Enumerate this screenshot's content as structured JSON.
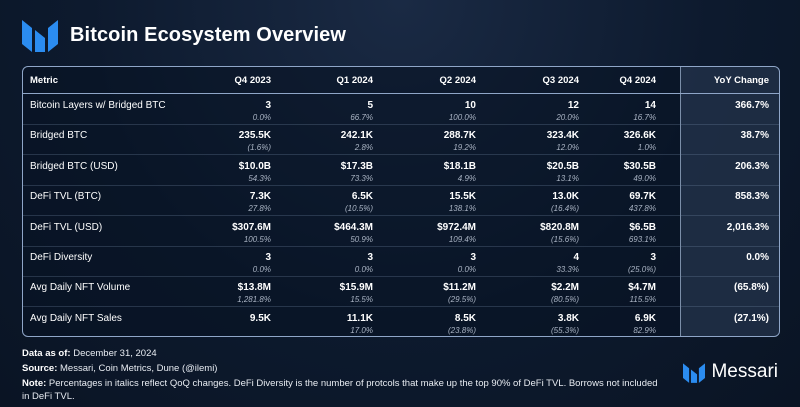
{
  "title": "Bitcoin Ecosystem Overview",
  "brand": "Messari",
  "columns": {
    "metric": "Metric",
    "q4_2023": "Q4 2023",
    "q1_2024": "Q1 2024",
    "q2_2024": "Q2 2024",
    "q3_2024": "Q3 2024",
    "q4_2024": "Q4 2024",
    "yoy": "YoY Change"
  },
  "rows": [
    {
      "metric": "Bitcoin Layers w/ Bridged BTC",
      "q4_2023": {
        "v": "3",
        "c": "0.0%"
      },
      "q1_2024": {
        "v": "5",
        "c": "66.7%"
      },
      "q2_2024": {
        "v": "10",
        "c": "100.0%"
      },
      "q3_2024": {
        "v": "12",
        "c": "20.0%"
      },
      "q4_2024": {
        "v": "14",
        "c": "16.7%"
      },
      "yoy": "366.7%"
    },
    {
      "metric": "Bridged BTC",
      "q4_2023": {
        "v": "235.5K",
        "c": "(1.6%)"
      },
      "q1_2024": {
        "v": "242.1K",
        "c": "2.8%"
      },
      "q2_2024": {
        "v": "288.7K",
        "c": "19.2%"
      },
      "q3_2024": {
        "v": "323.4K",
        "c": "12.0%"
      },
      "q4_2024": {
        "v": "326.6K",
        "c": "1.0%"
      },
      "yoy": "38.7%"
    },
    {
      "metric": "Bridged BTC (USD)",
      "q4_2023": {
        "v": "$10.0B",
        "c": "54.3%"
      },
      "q1_2024": {
        "v": "$17.3B",
        "c": "73.3%"
      },
      "q2_2024": {
        "v": "$18.1B",
        "c": "4.9%"
      },
      "q3_2024": {
        "v": "$20.5B",
        "c": "13.1%"
      },
      "q4_2024": {
        "v": "$30.5B",
        "c": "49.0%"
      },
      "yoy": "206.3%"
    },
    {
      "metric": "DeFi TVL (BTC)",
      "q4_2023": {
        "v": "7.3K",
        "c": "27.8%"
      },
      "q1_2024": {
        "v": "6.5K",
        "c": "(10.5%)"
      },
      "q2_2024": {
        "v": "15.5K",
        "c": "138.1%"
      },
      "q3_2024": {
        "v": "13.0K",
        "c": "(16.4%)"
      },
      "q4_2024": {
        "v": "69.7K",
        "c": "437.8%"
      },
      "yoy": "858.3%"
    },
    {
      "metric": "DeFi TVL (USD)",
      "q4_2023": {
        "v": "$307.6M",
        "c": "100.5%"
      },
      "q1_2024": {
        "v": "$464.3M",
        "c": "50.9%"
      },
      "q2_2024": {
        "v": "$972.4M",
        "c": "109.4%"
      },
      "q3_2024": {
        "v": "$820.8M",
        "c": "(15.6%)"
      },
      "q4_2024": {
        "v": "$6.5B",
        "c": "693.1%"
      },
      "yoy": "2,016.3%"
    },
    {
      "metric": "DeFi Diversity",
      "q4_2023": {
        "v": "3",
        "c": "0.0%"
      },
      "q1_2024": {
        "v": "3",
        "c": "0.0%"
      },
      "q2_2024": {
        "v": "3",
        "c": "0.0%"
      },
      "q3_2024": {
        "v": "4",
        "c": "33.3%"
      },
      "q4_2024": {
        "v": "3",
        "c": "(25.0%)"
      },
      "yoy": "0.0%"
    },
    {
      "metric": "Avg Daily NFT Volume",
      "q4_2023": {
        "v": "$13.8M",
        "c": "1,281.8%"
      },
      "q1_2024": {
        "v": "$15.9M",
        "c": "15.5%"
      },
      "q2_2024": {
        "v": "$11.2M",
        "c": "(29.5%)"
      },
      "q3_2024": {
        "v": "$2.2M",
        "c": "(80.5%)"
      },
      "q4_2024": {
        "v": "$4.7M",
        "c": "115.5%"
      },
      "yoy": "(65.8%)"
    },
    {
      "metric": "Avg Daily NFT Sales",
      "q4_2023": {
        "v": "9.5K",
        "c": ""
      },
      "q1_2024": {
        "v": "11.1K",
        "c": "17.0%"
      },
      "q2_2024": {
        "v": "8.5K",
        "c": "(23.8%)"
      },
      "q3_2024": {
        "v": "3.8K",
        "c": "(55.3%)"
      },
      "q4_2024": {
        "v": "6.9K",
        "c": "82.9%"
      },
      "yoy": "(27.1%)"
    }
  ],
  "footer": {
    "data_as_of_label": "Data as of:",
    "data_as_of": "December 31, 2024",
    "source_label": "Source:",
    "source": "Messari, Coin Metrics, Dune (@ilemi)",
    "note_label": "Note:",
    "note": "Percentages in italics reflect QoQ changes. DeFi Diversity is the number of protcols that make up the top 90% of DeFi TVL. Borrows not included in DeFi TVL."
  },
  "colors": {
    "background": "#0d1a2e",
    "logo_blue": "#2b8cf0",
    "border": "#8fa6c8"
  },
  "icons": {
    "logo": "messari-logo-icon"
  }
}
